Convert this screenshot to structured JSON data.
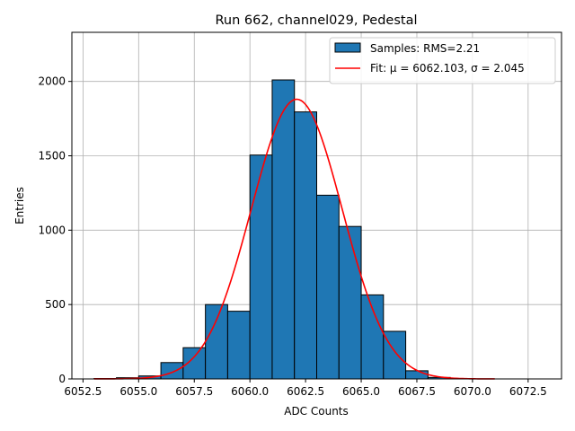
{
  "chart_data": {
    "type": "bar",
    "title": "Run 662, channel029, Pedestal",
    "xlabel": "ADC Counts",
    "ylabel": "Entries",
    "xlim": [
      6052.0,
      6074.0
    ],
    "ylim": [
      0,
      2330
    ],
    "xticks": [
      6052.5,
      6055.0,
      6057.5,
      6060.0,
      6062.5,
      6065.0,
      6067.5,
      6070.0,
      6072.5
    ],
    "xtick_labels": [
      "6052.5",
      "6055.0",
      "6057.5",
      "6060.0",
      "6062.5",
      "6065.0",
      "6067.5",
      "6070.0",
      "6072.5"
    ],
    "yticks": [
      0,
      500,
      1000,
      1500,
      2000
    ],
    "ytick_labels": [
      "0",
      "500",
      "1000",
      "1500",
      "2000"
    ],
    "grid": true,
    "legend_position": "top-right",
    "histogram": {
      "name": "Samples: RMS=2.21",
      "color": "#1f77b4",
      "edgecolor": "#000000",
      "bin_edges": [
        6053,
        6054,
        6055,
        6056,
        6057,
        6058,
        6059,
        6060,
        6061,
        6062,
        6063,
        6064,
        6065,
        6066,
        6067,
        6068,
        6069,
        6070,
        6071,
        6072,
        6073
      ],
      "counts": [
        3,
        8,
        20,
        110,
        210,
        500,
        455,
        1505,
        2010,
        1795,
        1235,
        1025,
        565,
        320,
        55,
        10,
        2,
        0,
        0,
        0
      ]
    },
    "fit": {
      "name": "Fit: μ = 6062.103, σ = 2.045",
      "color": "#ff0000",
      "mu": 6062.103,
      "sigma": 2.045,
      "amplitude": 1880,
      "x_range": [
        6053,
        6071
      ]
    }
  }
}
